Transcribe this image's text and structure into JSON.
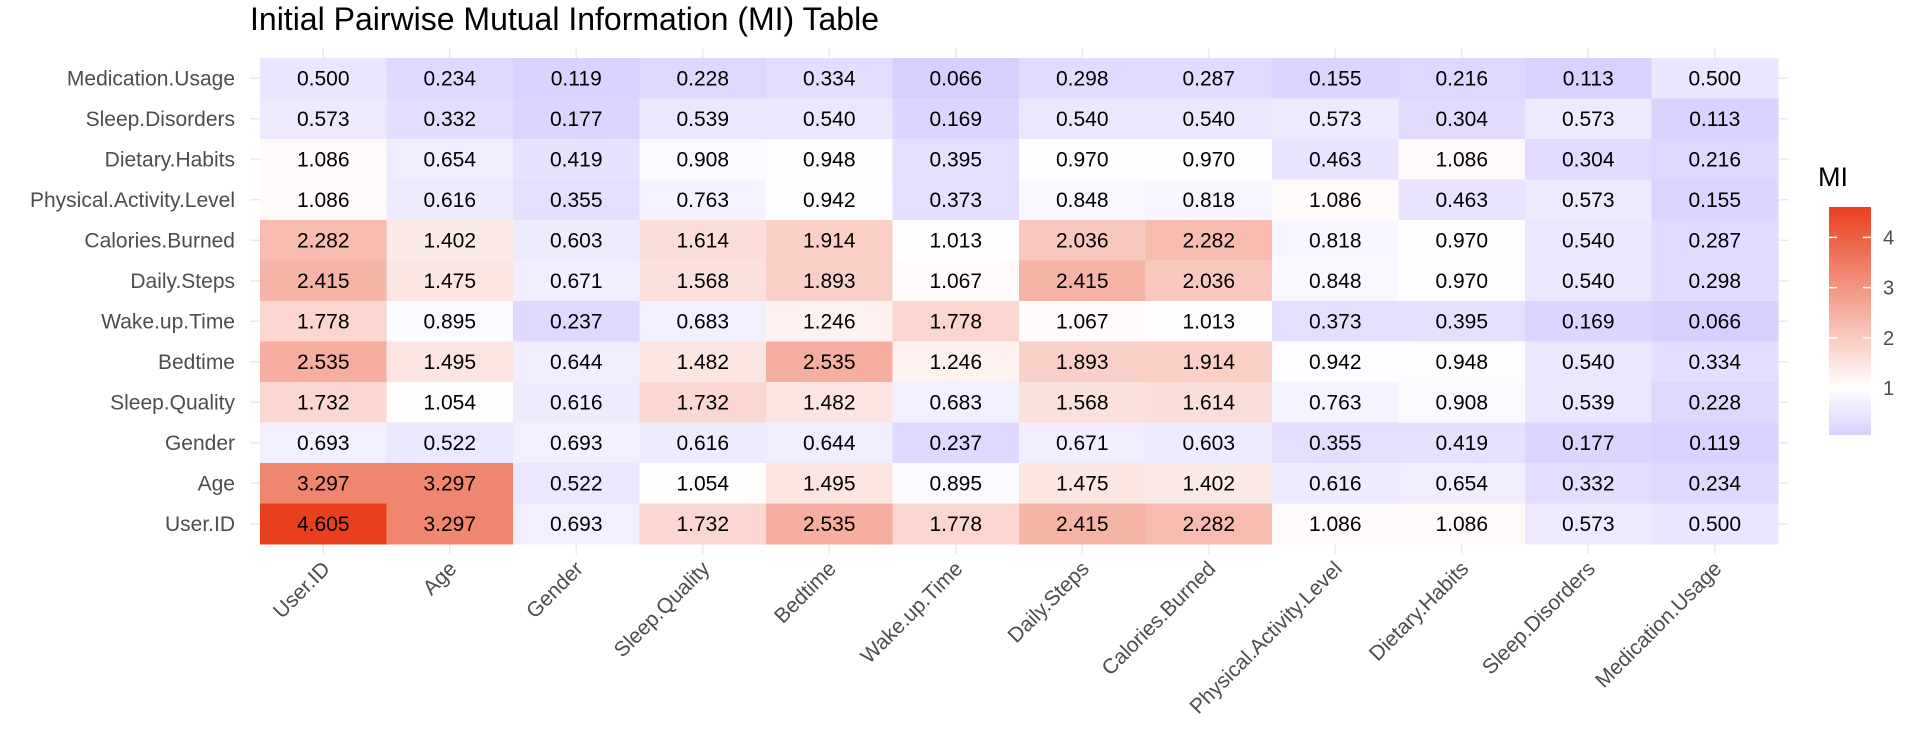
{
  "chart_data": {
    "type": "heatmap",
    "title": "Initial Pairwise Mutual Information (MI) Table",
    "xlabel": "",
    "ylabel": "",
    "x_categories": [
      "User.ID",
      "Age",
      "Gender",
      "Sleep.Quality",
      "Bedtime",
      "Wake.up.Time",
      "Daily.Steps",
      "Calories.Burned",
      "Physical.Activity.Level",
      "Dietary.Habits",
      "Sleep.Disorders",
      "Medication.Usage"
    ],
    "y_categories_top_to_bottom": [
      "Medication.Usage",
      "Sleep.Disorders",
      "Dietary.Habits",
      "Physical.Activity.Level",
      "Calories.Burned",
      "Daily.Steps",
      "Wake.up.Time",
      "Bedtime",
      "Sleep.Quality",
      "Gender",
      "Age",
      "User.ID"
    ],
    "values": [
      [
        "0.500",
        "0.234",
        "0.119",
        "0.228",
        "0.334",
        "0.066",
        "0.298",
        "0.287",
        "0.155",
        "0.216",
        "0.113",
        "0.500"
      ],
      [
        "0.573",
        "0.332",
        "0.177",
        "0.539",
        "0.540",
        "0.169",
        "0.540",
        "0.540",
        "0.573",
        "0.304",
        "0.573",
        "0.113"
      ],
      [
        "1.086",
        "0.654",
        "0.419",
        "0.908",
        "0.948",
        "0.395",
        "0.970",
        "0.970",
        "0.463",
        "1.086",
        "0.304",
        "0.216"
      ],
      [
        "1.086",
        "0.616",
        "0.355",
        "0.763",
        "0.942",
        "0.373",
        "0.848",
        "0.818",
        "1.086",
        "0.463",
        "0.573",
        "0.155"
      ],
      [
        "2.282",
        "1.402",
        "0.603",
        "1.614",
        "1.914",
        "1.013",
        "2.036",
        "2.282",
        "0.818",
        "0.970",
        "0.540",
        "0.287"
      ],
      [
        "2.415",
        "1.475",
        "0.671",
        "1.568",
        "1.893",
        "1.067",
        "2.415",
        "2.036",
        "0.848",
        "0.970",
        "0.540",
        "0.298"
      ],
      [
        "1.778",
        "0.895",
        "0.237",
        "0.683",
        "1.246",
        "1.778",
        "1.067",
        "1.013",
        "0.373",
        "0.395",
        "0.169",
        "0.066"
      ],
      [
        "2.535",
        "1.495",
        "0.644",
        "1.482",
        "2.535",
        "1.246",
        "1.893",
        "1.914",
        "0.942",
        "0.948",
        "0.540",
        "0.334"
      ],
      [
        "1.732",
        "1.054",
        "0.616",
        "1.732",
        "1.482",
        "0.683",
        "1.568",
        "1.614",
        "0.763",
        "0.908",
        "0.539",
        "0.228"
      ],
      [
        "0.693",
        "0.522",
        "0.693",
        "0.616",
        "0.644",
        "0.237",
        "0.671",
        "0.603",
        "0.355",
        "0.419",
        "0.177",
        "0.119"
      ],
      [
        "3.297",
        "3.297",
        "0.522",
        "1.054",
        "1.495",
        "0.895",
        "1.475",
        "1.402",
        "0.616",
        "0.654",
        "0.332",
        "0.234"
      ],
      [
        "4.605",
        "3.297",
        "0.693",
        "1.732",
        "2.535",
        "1.778",
        "2.415",
        "2.282",
        "1.086",
        "1.086",
        "0.573",
        "0.500"
      ]
    ],
    "legend": {
      "title": "MI",
      "ticks": [
        1,
        2,
        3,
        4
      ],
      "tick_labels": [
        "1",
        "2",
        "3",
        "4"
      ],
      "range": [
        0.066,
        4.605
      ],
      "midpoint": 1,
      "placement": "right"
    },
    "colors": {
      "low": "#d9cfff",
      "mid": "#ffffff",
      "high": "#e8401e",
      "panel_background": "#ffffff",
      "gridline": "#ebebeb"
    },
    "grid": true
  }
}
